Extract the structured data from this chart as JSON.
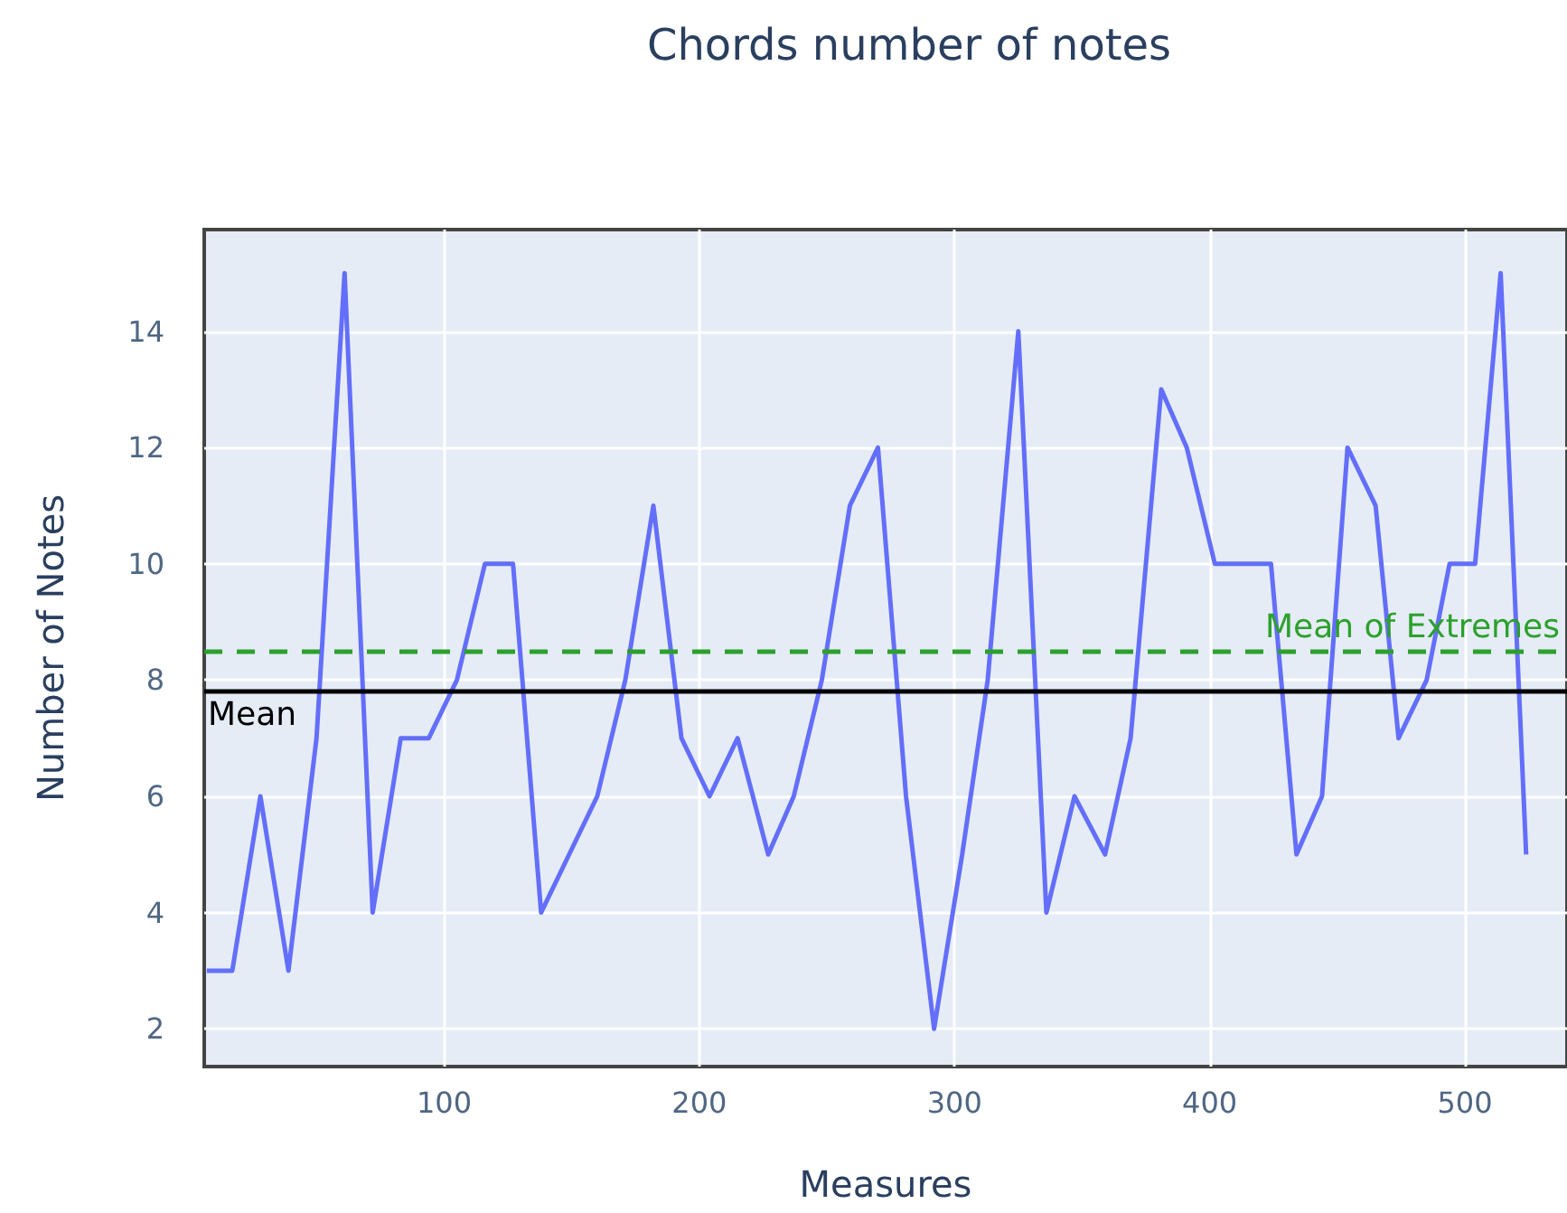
{
  "chart_data": {
    "type": "line",
    "title": "Chords number of notes",
    "xlabel": "Measures",
    "ylabel": "Number of Notes",
    "x": [
      7,
      17,
      28,
      39,
      50,
      61,
      72,
      83,
      94,
      105,
      116,
      127,
      138,
      149,
      160,
      171,
      182,
      193,
      204,
      215,
      227,
      237,
      248,
      259,
      270,
      281,
      292,
      303,
      313,
      325,
      336,
      347,
      359,
      369,
      381,
      391,
      402,
      413,
      424,
      434,
      444,
      454,
      465,
      474,
      485,
      494,
      504,
      514,
      524
    ],
    "series": [
      {
        "color": "#636efa",
        "values": [
          3,
          3,
          6,
          3,
          7,
          15,
          4,
          7,
          7,
          8,
          10,
          10,
          4,
          5,
          6,
          8,
          11,
          7,
          6,
          7,
          5,
          6,
          8,
          11,
          12,
          6,
          2,
          5,
          8,
          14,
          4,
          6,
          5,
          7,
          13,
          12,
          10,
          10,
          10,
          5,
          6,
          12,
          11,
          7,
          8,
          10,
          10,
          15,
          5
        ]
      }
    ],
    "xlim": [
      6,
      540
    ],
    "xticks": [
      100,
      200,
      300,
      400,
      500
    ],
    "ylim": [
      1.35,
      15.75
    ],
    "yticks": [
      2,
      4,
      6,
      8,
      10,
      12,
      14
    ],
    "grid": true,
    "marker": "none",
    "line_style": "solid",
    "ref_lines": [
      {
        "axis": "y",
        "value": 7.8,
        "label": "Mean",
        "color": "#000000",
        "line_style": "solid"
      },
      {
        "axis": "y",
        "value": 8.5,
        "label": "Mean of Extremes",
        "color": "#2ca02c",
        "line_style": "dashed"
      }
    ]
  }
}
